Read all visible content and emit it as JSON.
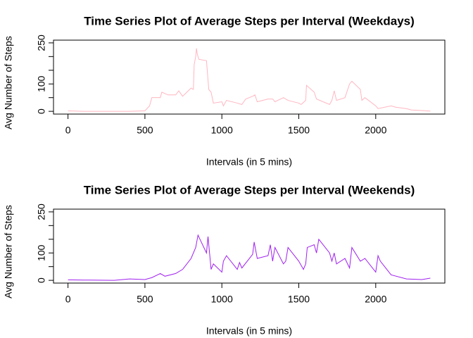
{
  "chart_data": [
    {
      "type": "line",
      "title": "Time Series Plot of Average Steps per Interval (Weekdays)",
      "xlabel": "Intervals (in 5 mins)",
      "ylabel": "Avg Number of Steps",
      "xlim": [
        -94.2,
        2449.2
      ],
      "ylim": [
        -10,
        260
      ],
      "xticks": [
        0,
        500,
        1000,
        1500,
        2000
      ],
      "yticks": [
        0,
        100,
        250
      ],
      "yticks_minor": [
        50,
        150,
        200
      ],
      "x": [
        0,
        100,
        200,
        300,
        400,
        500,
        530,
        545,
        600,
        610,
        650,
        700,
        720,
        745,
        800,
        815,
        820,
        830,
        835,
        840,
        850,
        900,
        915,
        930,
        945,
        1000,
        1010,
        1030,
        1100,
        1130,
        1155,
        1200,
        1215,
        1230,
        1300,
        1330,
        1345,
        1400,
        1430,
        1500,
        1515,
        1545,
        1550,
        1600,
        1615,
        1700,
        1715,
        1730,
        1745,
        1800,
        1830,
        1845,
        1900,
        1910,
        1930,
        2000,
        2015,
        2100,
        2130,
        2200,
        2230,
        2300,
        2355
      ],
      "series": [
        {
          "name": "Weekdays",
          "color": "#ffb6c1",
          "values": [
            2,
            0,
            0,
            0,
            0,
            2,
            20,
            50,
            50,
            70,
            60,
            60,
            75,
            55,
            85,
            80,
            170,
            200,
            230,
            210,
            190,
            185,
            80,
            70,
            30,
            35,
            20,
            40,
            30,
            25,
            45,
            55,
            60,
            35,
            45,
            45,
            35,
            50,
            40,
            30,
            25,
            40,
            95,
            70,
            45,
            25,
            40,
            75,
            40,
            50,
            100,
            110,
            80,
            40,
            50,
            20,
            10,
            20,
            15,
            10,
            5,
            3,
            1
          ]
        }
      ]
    },
    {
      "type": "line",
      "title": "Time Series Plot of Average Steps per Interval (Weekends)",
      "xlabel": "Intervals (in 5 mins)",
      "ylabel": "Avg Number of Steps",
      "xlim": [
        -94.2,
        2449.2
      ],
      "ylim": [
        -10,
        260
      ],
      "xticks": [
        0,
        500,
        1000,
        1500,
        2000
      ],
      "yticks": [
        0,
        100,
        250
      ],
      "yticks_minor": [
        50,
        150,
        200
      ],
      "x": [
        0,
        100,
        300,
        400,
        500,
        545,
        600,
        630,
        700,
        745,
        800,
        830,
        845,
        900,
        910,
        920,
        930,
        945,
        1000,
        1010,
        1030,
        1100,
        1115,
        1130,
        1200,
        1210,
        1230,
        1300,
        1315,
        1330,
        1345,
        1400,
        1415,
        1430,
        1500,
        1530,
        1545,
        1555,
        1600,
        1615,
        1630,
        1700,
        1715,
        1730,
        1745,
        1800,
        1830,
        1845,
        1900,
        1930,
        2000,
        2015,
        2030,
        2100,
        2200,
        2300,
        2355
      ],
      "series": [
        {
          "name": "Weekends",
          "color": "#a020f0",
          "values": [
            2,
            1,
            0,
            5,
            3,
            10,
            25,
            15,
            25,
            40,
            80,
            120,
            165,
            100,
            160,
            100,
            40,
            60,
            30,
            70,
            90,
            40,
            65,
            45,
            95,
            140,
            80,
            90,
            130,
            70,
            120,
            60,
            70,
            120,
            70,
            40,
            60,
            120,
            130,
            100,
            150,
            100,
            70,
            100,
            60,
            80,
            45,
            120,
            70,
            80,
            30,
            90,
            70,
            20,
            5,
            3,
            8
          ]
        }
      ]
    }
  ]
}
